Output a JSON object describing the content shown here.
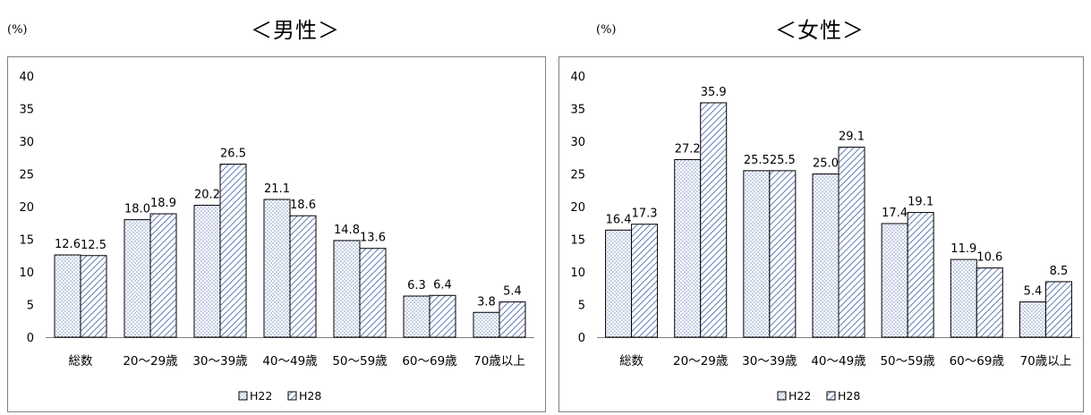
{
  "chart_data": [
    {
      "type": "bar",
      "title": "＜男性＞",
      "unit_label": "(%)",
      "categories": [
        "総数",
        "20～29歳",
        "30～39歳",
        "40～49歳",
        "50～59歳",
        "60～69歳",
        "70歳以上"
      ],
      "series": [
        {
          "name": "H22",
          "values": [
            12.6,
            18.0,
            20.2,
            21.1,
            14.8,
            6.3,
            3.8
          ],
          "pattern": "dots",
          "color": "#7f94c4"
        },
        {
          "name": "H28",
          "values": [
            12.5,
            18.9,
            26.5,
            18.6,
            13.6,
            6.4,
            5.4
          ],
          "pattern": "diagonal",
          "color": "#3b5ba8"
        }
      ],
      "yticks": [
        "0",
        "5",
        "10",
        "15",
        "20",
        "25",
        "30",
        "35",
        "40"
      ],
      "ylim": [
        0,
        40
      ],
      "grid": false,
      "legend": "bottom"
    },
    {
      "type": "bar",
      "title": "＜女性＞",
      "unit_label": "(%)",
      "categories": [
        "総数",
        "20～29歳",
        "30～39歳",
        "40～49歳",
        "50～59歳",
        "60～69歳",
        "70歳以上"
      ],
      "series": [
        {
          "name": "H22",
          "values": [
            16.4,
            27.2,
            25.5,
            25.0,
            17.4,
            11.9,
            5.4
          ],
          "pattern": "dots",
          "color": "#7f94c4"
        },
        {
          "name": "H28",
          "values": [
            17.3,
            35.9,
            25.5,
            29.1,
            19.1,
            10.6,
            8.5
          ],
          "pattern": "diagonal",
          "color": "#3b5ba8"
        }
      ],
      "yticks": [
        "0",
        "5",
        "10",
        "15",
        "20",
        "25",
        "30",
        "35",
        "40"
      ],
      "ylim": [
        0,
        40
      ],
      "grid": false,
      "legend": "bottom"
    }
  ]
}
